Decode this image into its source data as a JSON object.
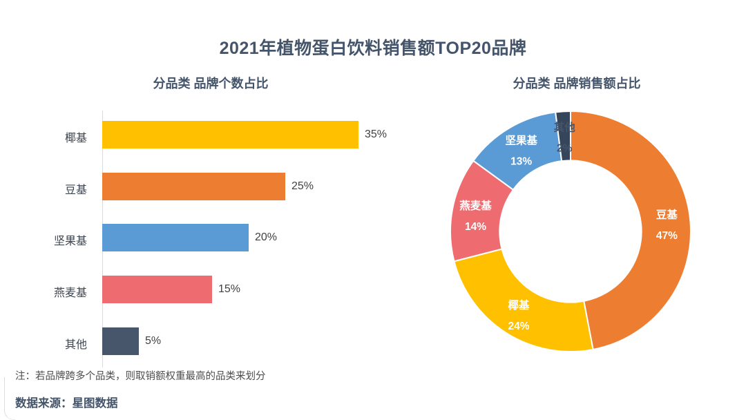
{
  "page": {
    "title": "2021年植物蛋白饮料销售额TOP20品牌",
    "note": "注：若品牌跨多个品类，则取销额权重最高的品类来划分",
    "source": "数据来源：星图数据"
  },
  "colors": {
    "title_text": "#44546A",
    "axis_line": "#D9D9D9",
    "bar_label_text": "#3D4550",
    "bar_value_text": "#404040"
  },
  "chart_data": [
    {
      "type": "bar",
      "orientation": "horizontal",
      "title": "分品类 品牌个数占比",
      "categories": [
        "椰基",
        "豆基",
        "坚果基",
        "燕麦基",
        "其他"
      ],
      "values": [
        35,
        25,
        20,
        15,
        5
      ],
      "unit": "%",
      "colors": [
        "#FFC000",
        "#ED7D31",
        "#5B9BD5",
        "#EE6C70",
        "#47566B"
      ],
      "xlim": [
        0,
        35
      ],
      "grid": false,
      "value_labels_shown": true
    },
    {
      "type": "pie",
      "subtype": "donut",
      "title": "分品类 品牌销售额占比",
      "categories": [
        "豆基",
        "椰基",
        "燕麦基",
        "坚果基",
        "其他"
      ],
      "values": [
        47,
        24,
        14,
        13,
        2
      ],
      "unit": "%",
      "colors": [
        "#ED7D31",
        "#FFC000",
        "#EE6C70",
        "#5B9BD5",
        "#36455A"
      ],
      "label_colors": [
        "#FFFFFF",
        "#FFFFFF",
        "#FFFFFF",
        "#FFFFFF",
        "#44546A"
      ],
      "start_angle_deg": 0,
      "direction": "clockwise",
      "inner_radius_ratio": 0.59,
      "legend": "none",
      "labels_on_slices": true
    }
  ]
}
